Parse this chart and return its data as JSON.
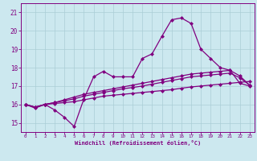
{
  "background_color": "#cce8ef",
  "grid_color": "#aacdd6",
  "line_color": "#800080",
  "marker": "D",
  "marker_size": 2.0,
  "linewidth": 0.9,
  "xlim": [
    -0.5,
    23.5
  ],
  "ylim": [
    14.5,
    21.5
  ],
  "xticks": [
    0,
    1,
    2,
    3,
    4,
    5,
    6,
    7,
    8,
    9,
    10,
    11,
    12,
    13,
    14,
    15,
    16,
    17,
    18,
    19,
    20,
    21,
    22,
    23
  ],
  "yticks": [
    15,
    16,
    17,
    18,
    19,
    20,
    21
  ],
  "xlabel": "Windchill (Refroidissement éolien,°C)",
  "lines": [
    [
      16.0,
      15.8,
      16.0,
      15.7,
      15.3,
      14.8,
      16.3,
      17.5,
      17.8,
      17.5,
      17.5,
      17.5,
      18.5,
      18.75,
      19.7,
      20.6,
      20.7,
      20.4,
      19.0,
      18.5,
      18.0,
      17.85,
      17.15,
      17.0
    ],
    [
      16.0,
      15.85,
      16.0,
      16.05,
      16.1,
      16.15,
      16.25,
      16.35,
      16.45,
      16.5,
      16.55,
      16.6,
      16.65,
      16.7,
      16.75,
      16.8,
      16.88,
      16.95,
      17.0,
      17.05,
      17.1,
      17.15,
      17.2,
      17.25
    ],
    [
      16.0,
      15.85,
      16.0,
      16.1,
      16.2,
      16.3,
      16.45,
      16.55,
      16.65,
      16.75,
      16.85,
      16.92,
      17.0,
      17.1,
      17.2,
      17.3,
      17.4,
      17.5,
      17.55,
      17.6,
      17.65,
      17.7,
      17.45,
      17.05
    ],
    [
      16.0,
      15.85,
      16.0,
      16.1,
      16.25,
      16.4,
      16.55,
      16.65,
      16.75,
      16.85,
      16.95,
      17.05,
      17.15,
      17.25,
      17.35,
      17.45,
      17.55,
      17.65,
      17.7,
      17.75,
      17.8,
      17.85,
      17.55,
      17.05
    ]
  ]
}
